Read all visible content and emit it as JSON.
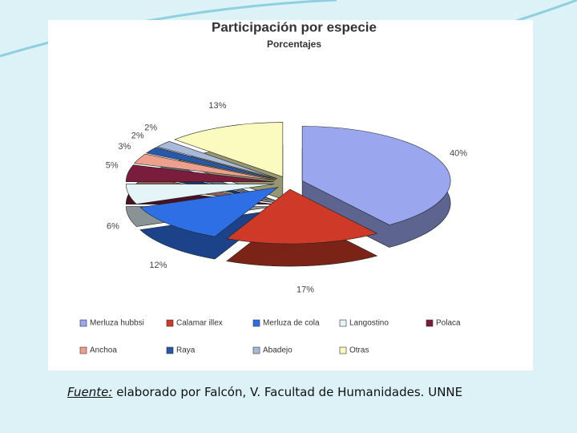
{
  "chart_data": {
    "type": "pie",
    "title": "Participación por especie",
    "subtitle": "Porcentajes",
    "categories": [
      "Merluza hubbsi",
      "Calamar illex",
      "Merluza de cola",
      "Langostino",
      "Polaca",
      "Anchoa",
      "Raya",
      "Abadejo",
      "Otras"
    ],
    "values": [
      40,
      17,
      12,
      6,
      5,
      3,
      2,
      2,
      13
    ],
    "value_labels": [
      "40%",
      "17%",
      "12%",
      "6%",
      "5%",
      "3%",
      "2%",
      "2%",
      "13%"
    ],
    "colors": [
      "#9aa6ee",
      "#cf3a28",
      "#2f6fe6",
      "#e4f4f7",
      "#7a1c3c",
      "#eea08e",
      "#2a58a8",
      "#a9b9d9",
      "#fbfbbf"
    ]
  },
  "caption": {
    "source_label": "Fuente:",
    "source_text": " elaborado por Falcón, V.  Facultad de Humanidades. UNNE"
  }
}
